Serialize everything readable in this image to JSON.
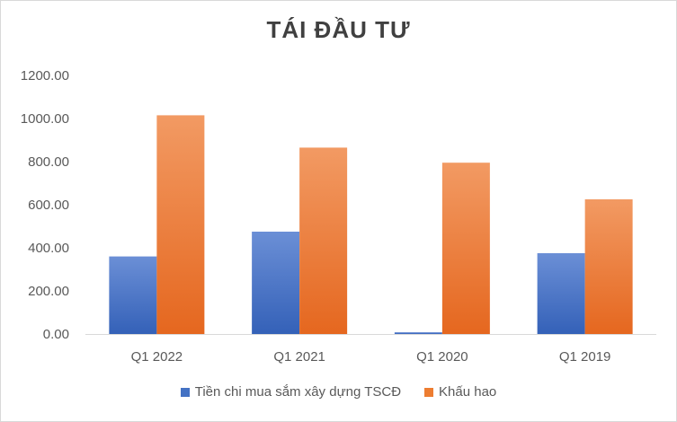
{
  "chart_data": {
    "type": "bar",
    "title": "TÁI ĐẦU TƯ",
    "xlabel": "",
    "ylabel": "",
    "categories": [
      "Q1 2022",
      "Q1 2021",
      "Q1 2020",
      "Q1 2019"
    ],
    "series": [
      {
        "name": "Tiền chi mua sắm xây dựng TSCĐ",
        "color": "#4472c4",
        "values": [
          360,
          475,
          8,
          375
        ]
      },
      {
        "name": "Khấu hao",
        "color": "#ed7d31",
        "values": [
          1015,
          865,
          795,
          625
        ]
      }
    ],
    "ylim": [
      0,
      1200
    ],
    "yticks": [
      "0.00",
      "200.00",
      "400.00",
      "600.00",
      "800.00",
      "1000.00",
      "1200.00"
    ],
    "grid": false,
    "legend_position": "bottom"
  }
}
